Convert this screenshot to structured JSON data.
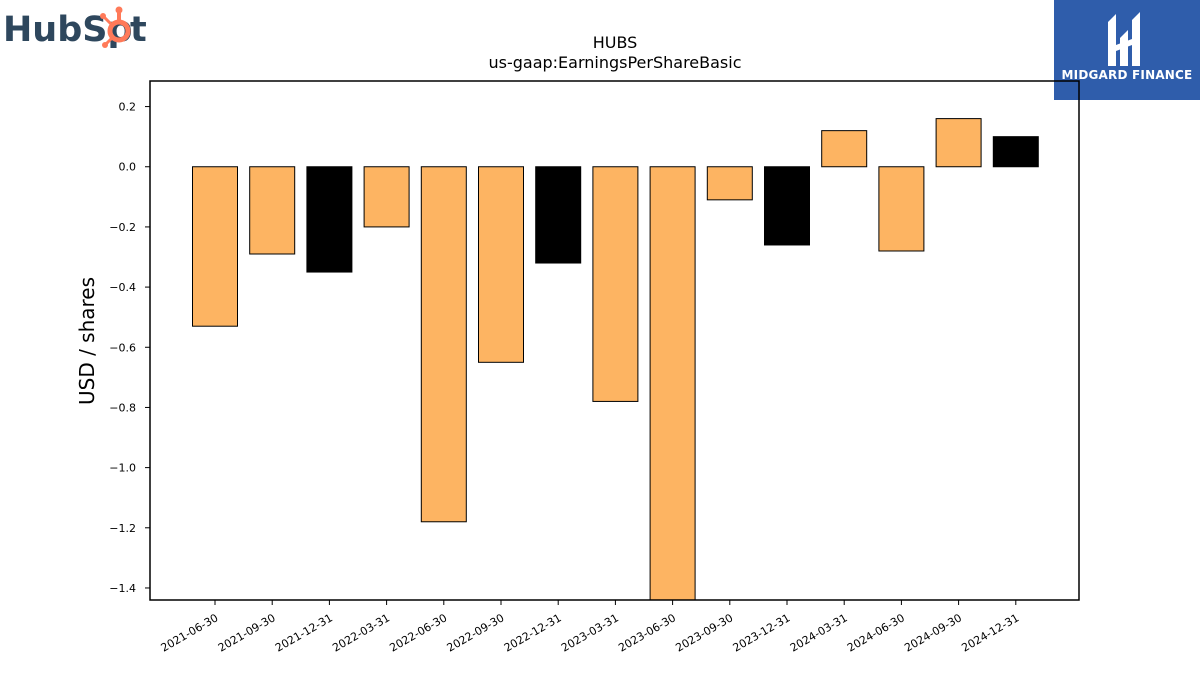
{
  "logos": {
    "hubspot_text_left": "HubSp",
    "hubspot_text_right": "t",
    "midgard_name": "MIDGARD FINANCE"
  },
  "colors": {
    "bar_orange": "#fdb462",
    "bar_black": "#000000",
    "hubspot_text": "#2e475d",
    "hubspot_accent": "#ff7a59",
    "midgard_bg": "#2f5dab"
  },
  "chart_data": {
    "type": "bar",
    "title": "HUBS",
    "subtitle": "us-gaap:EarningsPerShareBasic",
    "xlabel": "",
    "ylabel": "USD / shares",
    "ylim": [
      -1.44,
      0.285
    ],
    "yticks": [
      0.2,
      0.0,
      -0.2,
      -0.4,
      -0.6,
      -0.8,
      -1.0,
      -1.2,
      -1.4
    ],
    "ytick_labels": [
      "0.2",
      "0.0",
      "−0.2",
      "−0.4",
      "−0.6",
      "−0.8",
      "−1.0",
      "−1.2",
      "−1.4"
    ],
    "categories": [
      "2021-06-30",
      "2021-09-30",
      "2021-12-31",
      "2022-03-31",
      "2022-06-30",
      "2022-09-30",
      "2022-12-31",
      "2023-03-31",
      "2023-06-30",
      "2023-09-30",
      "2023-12-31",
      "2024-03-31",
      "2024-06-30",
      "2024-09-30",
      "2024-12-31"
    ],
    "values": [
      -0.53,
      -0.29,
      -0.35,
      -0.2,
      -1.18,
      -0.65,
      -0.32,
      -0.78,
      -1.46,
      -0.11,
      -0.26,
      0.12,
      -0.28,
      0.16,
      0.1
    ],
    "bar_colors": [
      "orange",
      "orange",
      "black",
      "orange",
      "orange",
      "orange",
      "black",
      "orange",
      "orange",
      "orange",
      "black",
      "orange",
      "orange",
      "orange",
      "black"
    ],
    "grid": false,
    "legend": "none"
  }
}
